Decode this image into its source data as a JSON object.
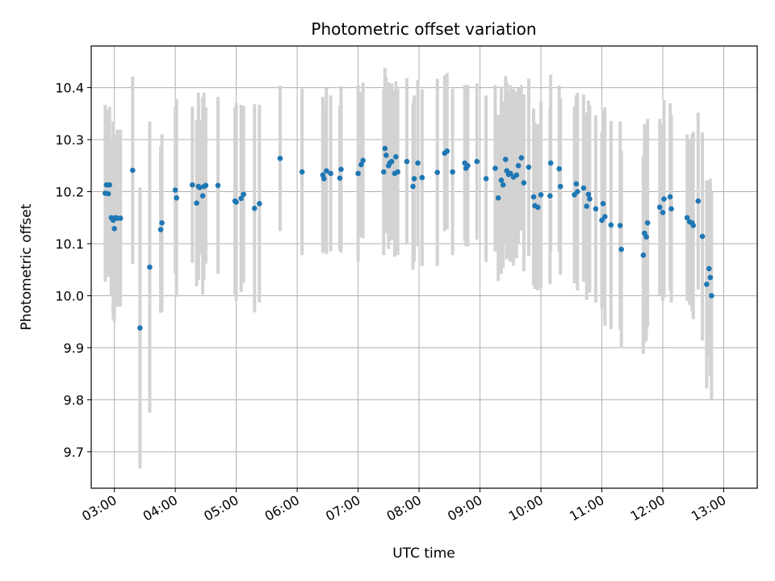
{
  "chart_data": {
    "type": "scatter",
    "title": "Photometric offset variation",
    "xlabel": "UTC time",
    "ylabel": "Photometric offset",
    "x_unit": "hours (UTC)",
    "xlim": [
      2.62,
      13.55
    ],
    "ylim": [
      9.63,
      10.48
    ],
    "x_ticks": [
      3,
      4,
      5,
      6,
      7,
      8,
      9,
      10,
      11,
      12,
      13
    ],
    "x_tick_labels": [
      "03:00",
      "04:00",
      "05:00",
      "06:00",
      "07:00",
      "08:00",
      "09:00",
      "10:00",
      "11:00",
      "12:00",
      "13:00"
    ],
    "y_ticks": [
      9.7,
      9.8,
      9.9,
      10.0,
      10.1,
      10.2,
      10.3,
      10.4
    ],
    "y_tick_labels": [
      "9.7",
      "9.8",
      "9.9",
      "10.0",
      "10.1",
      "10.2",
      "10.3",
      "10.4"
    ],
    "grid": true,
    "colors": {
      "marker": "#1f77b4",
      "errorbar": "#d3d3d3",
      "grid": "#b0b0b0",
      "axes": "#000000"
    },
    "series": [
      {
        "name": "offset",
        "x": [
          2.85,
          2.87,
          2.9,
          2.92,
          2.95,
          2.98,
          3.0,
          3.02,
          3.05,
          3.1,
          3.3,
          3.42,
          3.58,
          3.76,
          3.78,
          4.0,
          4.02,
          4.28,
          4.35,
          4.38,
          4.4,
          4.45,
          4.47,
          4.5,
          4.7,
          4.98,
          5.0,
          5.08,
          5.12,
          5.3,
          5.38,
          5.72,
          6.08,
          6.42,
          6.44,
          6.48,
          6.55,
          6.7,
          6.72,
          7.0,
          7.05,
          7.08,
          7.42,
          7.44,
          7.46,
          7.5,
          7.52,
          7.55,
          7.6,
          7.62,
          7.65,
          7.8,
          7.9,
          7.92,
          7.98,
          8.05,
          8.3,
          8.42,
          8.46,
          8.55,
          8.75,
          8.77,
          8.8,
          8.95,
          9.1,
          9.25,
          9.3,
          9.35,
          9.38,
          9.42,
          9.44,
          9.47,
          9.5,
          9.55,
          9.6,
          9.63,
          9.68,
          9.72,
          9.8,
          9.88,
          9.9,
          9.95,
          10.0,
          10.15,
          10.16,
          10.3,
          10.32,
          10.55,
          10.58,
          10.6,
          10.7,
          10.75,
          10.78,
          10.8,
          10.9,
          11.0,
          11.02,
          11.05,
          11.15,
          11.3,
          11.32,
          11.68,
          11.7,
          11.73,
          11.75,
          11.95,
          12.0,
          12.02,
          12.12,
          12.14,
          12.4,
          12.44,
          12.48,
          12.5,
          12.58,
          12.65,
          12.72,
          12.76,
          12.78,
          12.8
        ],
        "y": [
          10.197,
          10.213,
          10.196,
          10.213,
          10.15,
          10.145,
          10.129,
          10.15,
          10.149,
          10.149,
          10.241,
          9.938,
          10.055,
          10.127,
          10.14,
          10.203,
          10.188,
          10.213,
          10.178,
          10.21,
          10.208,
          10.192,
          10.21,
          10.212,
          10.212,
          10.182,
          10.18,
          10.187,
          10.195,
          10.168,
          10.177,
          10.264,
          10.238,
          10.232,
          10.225,
          10.24,
          10.235,
          10.226,
          10.243,
          10.235,
          10.252,
          10.26,
          10.238,
          10.283,
          10.27,
          10.25,
          10.255,
          10.258,
          10.235,
          10.267,
          10.238,
          10.258,
          10.21,
          10.225,
          10.255,
          10.227,
          10.237,
          10.274,
          10.278,
          10.238,
          10.255,
          10.245,
          10.25,
          10.258,
          10.225,
          10.245,
          10.188,
          10.222,
          10.213,
          10.262,
          10.24,
          10.233,
          10.235,
          10.228,
          10.232,
          10.25,
          10.265,
          10.217,
          10.247,
          10.19,
          10.173,
          10.17,
          10.194,
          10.192,
          10.255,
          10.244,
          10.21,
          10.194,
          10.215,
          10.2,
          10.207,
          10.172,
          10.195,
          10.186,
          10.167,
          10.145,
          10.177,
          10.152,
          10.136,
          10.135,
          10.089,
          10.078,
          10.12,
          10.113,
          10.14,
          10.17,
          10.16,
          10.186,
          10.19,
          10.167,
          10.15,
          10.142,
          10.14,
          10.135,
          10.182,
          10.114,
          10.022,
          10.052,
          10.035,
          10.0
        ],
        "yerr": [
          0.17,
          0.13,
          0.16,
          0.15,
          0.15,
          0.19,
          0.18,
          0.12,
          0.17,
          0.17,
          0.18,
          0.27,
          0.28,
          0.16,
          0.17,
          0.16,
          0.19,
          0.15,
          0.16,
          0.18,
          0.13,
          0.19,
          0.18,
          0.15,
          0.17,
          0.18,
          0.19,
          0.18,
          0.17,
          0.2,
          0.19,
          0.14,
          0.16,
          0.15,
          0.14,
          0.16,
          0.15,
          0.14,
          0.16,
          0.17,
          0.14,
          0.15,
          0.16,
          0.155,
          0.15,
          0.16,
          0.15,
          0.15,
          0.16,
          0.145,
          0.16,
          0.16,
          0.16,
          0.16,
          0.16,
          0.17,
          0.18,
          0.15,
          0.15,
          0.16,
          0.15,
          0.15,
          0.155,
          0.15,
          0.16,
          0.16,
          0.16,
          0.18,
          0.16,
          0.16,
          0.17,
          0.16,
          0.17,
          0.17,
          0.16,
          0.15,
          0.14,
          0.17,
          0.17,
          0.17,
          0.16,
          0.16,
          0.18,
          0.17,
          0.17,
          0.16,
          0.17,
          0.17,
          0.17,
          0.19,
          0.18,
          0.18,
          0.18,
          0.18,
          0.18,
          0.17,
          0.18,
          0.21,
          0.2,
          0.2,
          0.19,
          0.19,
          0.21,
          0.2,
          0.2,
          0.17,
          0.17,
          0.19,
          0.18,
          0.18,
          0.16,
          0.16,
          0.17,
          0.18,
          0.17,
          0.2,
          0.2,
          0.17,
          0.19,
          0.2
        ]
      }
    ]
  }
}
